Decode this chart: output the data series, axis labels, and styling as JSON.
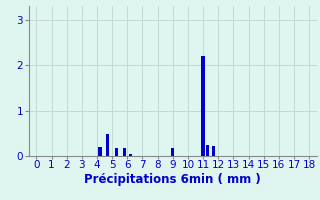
{
  "xlabel": "Précipitations 6min ( mm )",
  "xlim": [
    -0.5,
    18.5
  ],
  "ylim": [
    0,
    3.3
  ],
  "yticks": [
    0,
    1,
    2,
    3
  ],
  "xticks": [
    0,
    1,
    2,
    3,
    4,
    5,
    6,
    7,
    8,
    9,
    10,
    11,
    12,
    13,
    14,
    15,
    16,
    17,
    18
  ],
  "bar_positions": [
    4.2,
    4.7,
    5.3,
    5.8,
    6.2,
    9.0,
    11.0,
    11.3,
    11.7
  ],
  "bar_heights": [
    0.2,
    0.48,
    0.18,
    0.18,
    0.04,
    0.18,
    2.2,
    0.25,
    0.22
  ],
  "bar_color": "#0000cc",
  "bar_width": 0.22,
  "bg_color": "#dff5ef",
  "grid_color": "#b8d8d0",
  "tick_label_color": "#0000cc",
  "xlabel_color": "#0000cc",
  "xlabel_fontsize": 8.5,
  "tick_fontsize": 7.5
}
